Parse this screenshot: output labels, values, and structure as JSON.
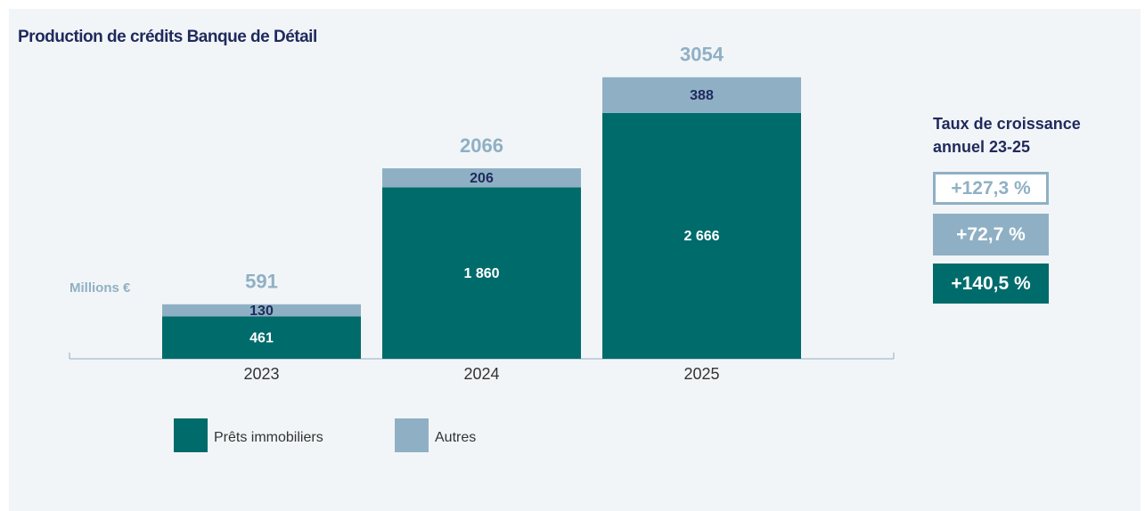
{
  "chart_data": {
    "type": "stacked_bar",
    "title": "Production de crédits Banque de Détail",
    "y_label": "Millions €",
    "categories": [
      "2023",
      "2024",
      "2025"
    ],
    "series": [
      {
        "name": "Prêts immobiliers",
        "color": "#006b6b",
        "values": [
          461,
          1860,
          2666
        ],
        "value_labels": [
          "461",
          "1 860",
          "2 666"
        ]
      },
      {
        "name": "Autres",
        "color": "#8fb0c4",
        "values": [
          130,
          206,
          388
        ]
      }
    ],
    "totals": [
      591,
      2066,
      3054
    ],
    "ylim": [
      0,
      3100
    ],
    "legend": "bottom"
  },
  "growth": {
    "title_lines": [
      "Taux de croissance",
      "annuel 23-25"
    ],
    "items": [
      {
        "label": "+127,3 %",
        "style": "outline",
        "color": "#8fb0c4"
      },
      {
        "label": "+72,7 %",
        "style": "filled",
        "color": "#8fb0c4"
      },
      {
        "label": "+140,5 %",
        "style": "filled",
        "color": "#006b6b"
      }
    ]
  }
}
